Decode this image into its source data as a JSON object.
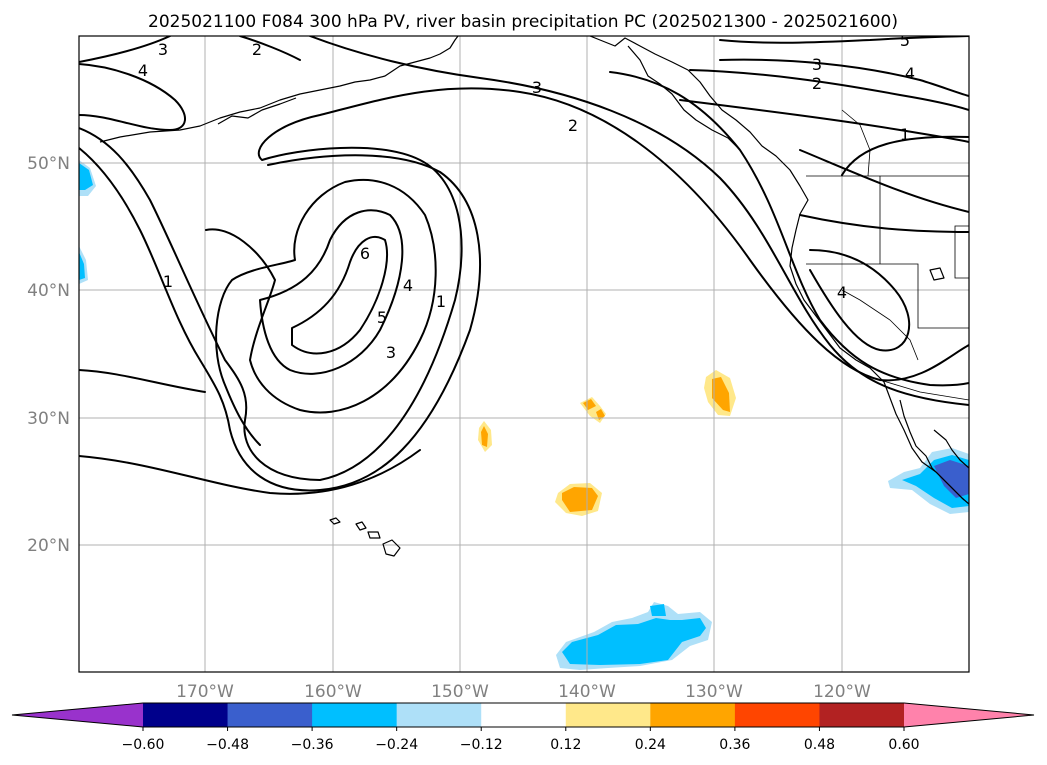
{
  "title": "2025021100 F084 300 hPa PV, river basin precipitation PC (2025021300 - 2025021600)",
  "map": {
    "lon_labels": [
      "170°W",
      "160°W",
      "150°W",
      "140°W",
      "130°W",
      "120°W"
    ],
    "lat_labels": [
      "50°N",
      "40°N",
      "30°N",
      "20°N"
    ],
    "pv_contour_labels": [
      "3",
      "2",
      "4",
      "3",
      "2",
      "3",
      "2",
      "5",
      "4",
      "1",
      "1",
      "6",
      "4",
      "5",
      "1",
      "3",
      "4"
    ],
    "colors": {
      "pv_contour": "#000000",
      "grid": "#b0b0b0",
      "pos_024": "#ffa500",
      "pos_012": "#ffe88a",
      "neg_024": "#00bfff",
      "neg_012": "#aee0f8",
      "neg_036": "#3a5fcd"
    }
  },
  "colorbar": {
    "ticks": [
      "−0.60",
      "−0.48",
      "−0.36",
      "−0.24",
      "−0.12",
      "0.12",
      "0.24",
      "0.36",
      "0.48",
      "0.60"
    ],
    "colors": [
      "#9932cc",
      "#00008b",
      "#3a5fcd",
      "#00bfff",
      "#aee0f8",
      "#ffffff",
      "#ffe88a",
      "#ffa500",
      "#ff4500",
      "#b22222",
      "#ff82ab"
    ]
  }
}
